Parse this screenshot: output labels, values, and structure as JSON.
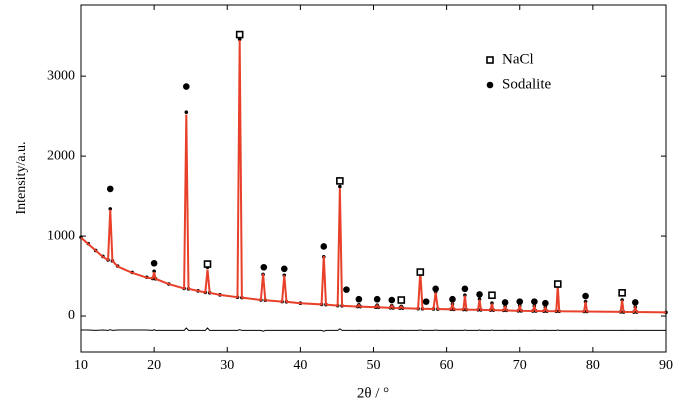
{
  "chart_data": {
    "type": "xrd",
    "x_label": "2θ / °",
    "y_label": "Intensity/a.u.",
    "xlim": [
      10,
      90
    ],
    "xticks": [
      10,
      20,
      30,
      40,
      50,
      60,
      70,
      80,
      90
    ],
    "ylim": [
      -450,
      3890
    ],
    "yticks": [
      0,
      1000,
      2000,
      3000
    ],
    "legend_position": "upper right",
    "x": [
      10,
      11,
      12,
      13,
      13.7,
      14.0,
      14.3,
      15,
      17,
      19,
      19.8,
      20.0,
      20.2,
      22,
      24.1,
      24.4,
      24.7,
      26,
      27.0,
      27.3,
      27.6,
      29,
      31.4,
      31.7,
      32.0,
      34.6,
      34.9,
      35.2,
      37.5,
      37.8,
      38.1,
      40,
      42.9,
      43.2,
      43.5,
      45.1,
      45.4,
      45.7,
      47.8,
      48.0,
      48.2,
      50.3,
      50.5,
      50.7,
      52.3,
      52.5,
      52.7,
      53.6,
      53.8,
      54.0,
      56.1,
      56.4,
      56.7,
      58.2,
      58.5,
      58.8,
      60.6,
      60.8,
      61.0,
      62.3,
      62.5,
      62.7,
      64.3,
      64.5,
      64.7,
      66.0,
      66.2,
      66.4,
      67.8,
      68.0,
      68.2,
      69.8,
      70.0,
      70.2,
      71.8,
      72.0,
      72.2,
      73.3,
      73.5,
      73.7,
      75.0,
      75.2,
      75.4,
      78.8,
      79.0,
      79.2,
      83.8,
      84.0,
      84.2,
      85.6,
      85.8,
      86.0,
      90
    ],
    "series": [
      {
        "kind": "observed",
        "color": "#000000",
        "values": [
          985,
          905,
          820,
          745,
          700,
          1340,
          690,
          625,
          545,
          485,
          470,
          560,
          465,
          400,
          345,
          2550,
          340,
          315,
          295,
          610,
          290,
          265,
          235,
          3460,
          230,
          200,
          520,
          198,
          180,
          510,
          178,
          160,
          145,
          740,
          143,
          130,
          1620,
          128,
          118,
          140,
          117,
          110,
          135,
          109,
          102,
          130,
          101,
          99,
          120,
          98,
          92,
          560,
          91,
          88,
          300,
          87,
          84,
          150,
          83,
          81,
          260,
          80,
          78,
          210,
          77,
          74,
          160,
          73,
          70,
          120,
          70,
          65,
          130,
          65,
          63,
          125,
          63,
          61,
          110,
          61,
          60,
          380,
          59,
          56,
          180,
          56,
          52,
          200,
          51,
          50,
          110,
          50,
          45
        ]
      },
      {
        "kind": "calculated",
        "color": "#e8402a",
        "values": [
          980,
          900,
          820,
          740,
          700,
          1330,
          690,
          620,
          540,
          480,
          470,
          550,
          465,
          400,
          345,
          2520,
          340,
          315,
          295,
          580,
          290,
          265,
          235,
          3450,
          230,
          200,
          530,
          198,
          180,
          510,
          178,
          160,
          145,
          750,
          143,
          130,
          1600,
          128,
          118,
          138,
          117,
          110,
          133,
          109,
          102,
          128,
          101,
          99,
          118,
          98,
          92,
          555,
          91,
          88,
          295,
          87,
          84,
          148,
          83,
          81,
          255,
          80,
          78,
          205,
          77,
          74,
          155,
          73,
          70,
          118,
          70,
          65,
          128,
          65,
          63,
          122,
          63,
          61,
          108,
          61,
          60,
          375,
          59,
          56,
          178,
          56,
          52,
          198,
          51,
          50,
          108,
          50,
          45
        ]
      },
      {
        "kind": "difference",
        "color": "#000000",
        "values": [
          -175,
          -175,
          -180,
          -175,
          -180,
          -170,
          -180,
          -175,
          -175,
          -175,
          -180,
          -170,
          -180,
          -180,
          -180,
          -150,
          -180,
          -180,
          -180,
          -150,
          -180,
          -180,
          -180,
          -170,
          -180,
          -180,
          -190,
          -180,
          -180,
          -180,
          -180,
          -180,
          -180,
          -190,
          -180,
          -180,
          -160,
          -180,
          -180,
          -178,
          -180,
          -180,
          -178,
          -180,
          -180,
          -178,
          -180,
          -180,
          -178,
          -180,
          -180,
          -175,
          -180,
          -180,
          -175,
          -180,
          -180,
          -178,
          -180,
          -180,
          -175,
          -180,
          -180,
          -175,
          -180,
          -180,
          -175,
          -180,
          -180,
          -178,
          -180,
          -180,
          -178,
          -180,
          -180,
          -177,
          -180,
          -180,
          -178,
          -180,
          -180,
          -175,
          -180,
          -180,
          -178,
          -180,
          -180,
          -178,
          -180,
          -180,
          -178,
          -180,
          -180
        ]
      }
    ],
    "phases": [
      {
        "name": "NaCl",
        "marker": "square",
        "x": [
          27.3,
          31.7,
          45.4,
          53.8,
          56.4,
          66.2,
          75.2,
          84.0
        ],
        "y": [
          650,
          3520,
          1690,
          200,
          550,
          260,
          400,
          290
        ]
      },
      {
        "name": "Sodalite",
        "marker": "circle",
        "x": [
          14.0,
          20.0,
          24.4,
          35.0,
          37.8,
          43.2,
          46.3,
          48.0,
          50.5,
          52.5,
          57.2,
          58.5,
          60.8,
          62.5,
          64.5,
          68.0,
          70.0,
          72.0,
          73.5,
          79.0,
          85.8
        ],
        "y": [
          1590,
          660,
          2870,
          610,
          590,
          870,
          330,
          210,
          210,
          200,
          180,
          340,
          210,
          340,
          270,
          170,
          180,
          180,
          160,
          250,
          170
        ]
      }
    ]
  }
}
